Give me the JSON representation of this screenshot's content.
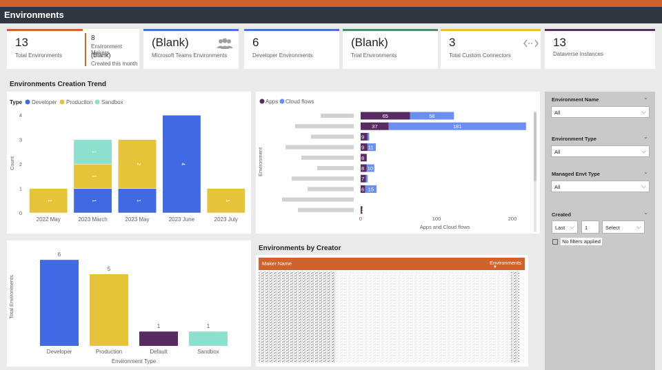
{
  "header": {
    "title": "Environments"
  },
  "cards": {
    "total": {
      "value": "13",
      "label": "Total Environments"
    },
    "makers": {
      "value": "8",
      "label": "Environment Makers"
    },
    "created": {
      "value": "(Blank)",
      "label": "Created this month"
    },
    "teams": {
      "value": "(Blank)",
      "label": "Microsoft Teams Environments"
    },
    "developer": {
      "value": "6",
      "label": "Developer Environments"
    },
    "trial": {
      "value": "(Blank)",
      "label": "Trial Environments"
    },
    "connectors": {
      "value": "3",
      "label": "Total Custom Connectors"
    },
    "dataverse": {
      "value": "13",
      "label": "Dataverse Instances"
    }
  },
  "colors": {
    "accent_orange": "#d0622b",
    "developer": "#4169e1",
    "production": "#e5c43a",
    "sandbox": "#8de0cb",
    "default": "#5a2a63",
    "apps": "#5a2a63",
    "cloud_flows": "#6b8ff0",
    "card_bar_blue": "#4a6ee0",
    "card_bar_green": "#4f8a6b",
    "card_bar_yellow": "#e5c43a",
    "card_bar_purple": "#5a2a63"
  },
  "trend": {
    "section_title": "Environments Creation Trend",
    "legend_title": "Type",
    "legend": [
      "Developer",
      "Production",
      "Sandbox"
    ],
    "ylabel": "Count"
  },
  "apps_chart": {
    "legend": [
      "Apps",
      "Cloud flows"
    ],
    "ylabel": "Environment",
    "xlabel": "Apps and Cloud flows"
  },
  "type_chart": {
    "ylabel": "Total Environments",
    "xlabel": "Environment Type"
  },
  "creator": {
    "section_title": "Environments by Creator",
    "col_maker": "Maker Name",
    "col_envs": "Environments"
  },
  "slicers": {
    "env_name": {
      "title": "Environment Name",
      "value": "All"
    },
    "env_type": {
      "title": "Environment Type",
      "value": "All"
    },
    "managed": {
      "title": "Managed Envt Type",
      "value": "All"
    },
    "created": {
      "title": "Created",
      "period": "Last",
      "count": "1",
      "unit": "Select",
      "status": "No filters applied"
    }
  },
  "chart_data": [
    {
      "type": "bar",
      "stacked": true,
      "categories": [
        "2022 May",
        "2023 March",
        "2023 May",
        "2023 June",
        "2023 July"
      ],
      "series": [
        {
          "name": "Developer",
          "values": [
            0,
            1,
            1,
            4,
            0
          ]
        },
        {
          "name": "Production",
          "values": [
            1,
            1,
            2,
            0,
            1
          ]
        },
        {
          "name": "Sandbox",
          "values": [
            0,
            1,
            0,
            0,
            0
          ]
        }
      ],
      "ylabel": "Count",
      "yticks": [
        0,
        1,
        2,
        3,
        4
      ],
      "ylim": [
        0,
        4.4
      ],
      "legend_placement": "top-left"
    },
    {
      "type": "bar",
      "orientation": "horizontal",
      "stacked": true,
      "categories": [
        "",
        "",
        "",
        "",
        "",
        "",
        "",
        "",
        "",
        ""
      ],
      "series": [
        {
          "name": "Apps",
          "values": [
            65,
            37,
            9,
            9,
            8,
            8,
            7,
            6,
            0,
            2
          ]
        },
        {
          "name": "Cloud flows",
          "values": [
            58,
            181,
            1,
            11,
            0,
            10,
            1,
            15,
            0,
            0
          ]
        }
      ],
      "xlabel": "Apps and Cloud flows",
      "ylabel": "Environment",
      "xticks": [
        0,
        100,
        200
      ],
      "xlim": [
        0,
        220
      ],
      "legend_placement": "top-left"
    },
    {
      "type": "bar",
      "categories": [
        "Developer",
        "Production",
        "Default",
        "Sandbox"
      ],
      "values": [
        6,
        5,
        1,
        1
      ],
      "xlabel": "Environment Type",
      "ylabel": "Total Environments",
      "ylim": [
        0,
        6.2
      ]
    }
  ]
}
